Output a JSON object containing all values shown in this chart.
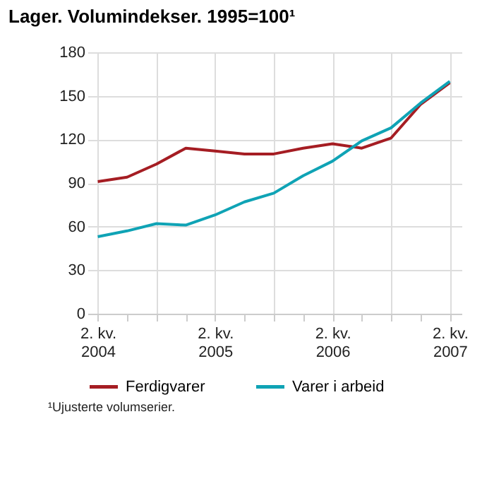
{
  "chart_data": {
    "type": "line",
    "title": "Lager. Volumindekser. 1995=100¹",
    "categories": [
      "2. kv.\n2004",
      null,
      null,
      null,
      "2. kv.\n2005",
      null,
      null,
      null,
      "2. kv.\n2006",
      null,
      null,
      null,
      "2. kv.\n2007"
    ],
    "series": [
      {
        "name": "Ferdigvarer",
        "color": "#a51d23",
        "values": [
          91,
          94,
          103,
          114,
          112,
          110,
          110,
          114,
          117,
          114,
          121,
          144,
          159
        ]
      },
      {
        "name": "Varer i arbeid",
        "color": "#0fa3b5",
        "values": [
          53,
          57,
          62,
          61,
          68,
          77,
          83,
          95,
          105,
          119,
          128,
          145,
          160
        ]
      }
    ],
    "ylim": [
      0,
      180
    ],
    "yticks": [
      0,
      30,
      60,
      90,
      120,
      150,
      180
    ],
    "grid": true,
    "legend": "bottom",
    "line_style": "solid",
    "marker": "none",
    "annotations": [
      "¹Ujusterte volumserier."
    ]
  }
}
